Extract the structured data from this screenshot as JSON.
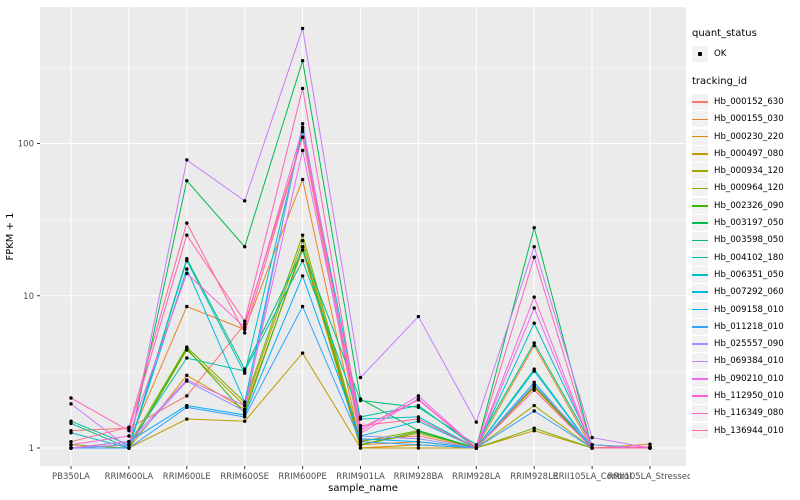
{
  "chart_data": {
    "type": "line",
    "title": "",
    "xlabel": "sample_name",
    "ylabel": "FPKM + 1",
    "y_scale": "log10",
    "y_ticks": [
      1,
      10,
      100
    ],
    "grid": {
      "major_y": [
        1,
        10,
        100
      ],
      "minor_y": [
        3.1623,
        31.623,
        316.23
      ],
      "vertical_major": true
    },
    "legend_position": "right",
    "legend": {
      "quant_status_title": "quant_status",
      "quant_status_items": [
        {
          "label": "OK",
          "symbol": "point"
        }
      ],
      "tracking_title": "tracking_id"
    },
    "colors": {
      "panel_bg": "#ebebeb",
      "grid": "#ffffff",
      "point": "#000000",
      "axis_text": "#4d4d4d",
      "axis_title": "#000000",
      "tick": "#333333",
      "legend_key_bg": "#f2f2f2"
    },
    "categories": [
      "PB350LA",
      "RRIM600LA",
      "RRIM600LE",
      "RRIM600SE",
      "RRIM600PE",
      "RRIM901LA",
      "RRIM928BA",
      "RRIM928LA",
      "RRIM928LE",
      "RRII105LA_Control",
      "RRII105LA_Stressed"
    ],
    "series": [
      {
        "name": "Hb_000152_630",
        "color": "#F8766D",
        "values": [
          1.3,
          1.35,
          2.2,
          6.5,
          110,
          1.12,
          1.2,
          1.0,
          2.6,
          1.0,
          1.0
        ]
      },
      {
        "name": "Hb_000155_030",
        "color": "#E88526",
        "values": [
          1.0,
          1.1,
          8.5,
          6.0,
          58,
          1.05,
          1.1,
          1.0,
          4.7,
          1.0,
          1.06
        ]
      },
      {
        "name": "Hb_000230_220",
        "color": "#D89000",
        "values": [
          1.0,
          1.0,
          3.0,
          1.8,
          20,
          1.0,
          1.05,
          1.0,
          2.5,
          1.0,
          1.0
        ]
      },
      {
        "name": "Hb_000497_080",
        "color": "#C09B00",
        "values": [
          1.0,
          1.0,
          1.55,
          1.5,
          4.2,
          1.0,
          1.0,
          1.0,
          1.3,
          1.0,
          1.0
        ]
      },
      {
        "name": "Hb_000934_120",
        "color": "#A3A500",
        "values": [
          1.05,
          1.0,
          4.4,
          1.9,
          23,
          1.05,
          1.25,
          1.0,
          1.9,
          1.0,
          1.0
        ]
      },
      {
        "name": "Hb_000964_120",
        "color": "#7CAE00",
        "values": [
          1.0,
          1.05,
          4.6,
          2.0,
          25,
          1.1,
          1.3,
          1.0,
          1.35,
          1.0,
          1.0
        ]
      },
      {
        "name": "Hb_002326_090",
        "color": "#39B600",
        "values": [
          1.0,
          1.0,
          4.5,
          1.7,
          21,
          1.05,
          1.28,
          1.0,
          2.55,
          1.0,
          1.0
        ]
      },
      {
        "name": "Hb_003197_050",
        "color": "#00BB4E",
        "values": [
          1.0,
          1.0,
          57,
          21,
          350,
          2.1,
          1.3,
          1.0,
          28,
          1.0,
          1.0
        ]
      },
      {
        "name": "Hb_003598_050",
        "color": "#00BF7D",
        "values": [
          1.45,
          1.0,
          17.5,
          3.3,
          20,
          2.05,
          1.85,
          1.05,
          4.9,
          1.05,
          1.0
        ]
      },
      {
        "name": "Hb_004102_180",
        "color": "#00C1A3",
        "values": [
          1.5,
          1.05,
          3.9,
          3.2,
          17,
          1.6,
          1.9,
          1.0,
          3.3,
          1.0,
          1.0
        ]
      },
      {
        "name": "Hb_006351_050",
        "color": "#00BFC4",
        "values": [
          1.26,
          1.0,
          17,
          3.1,
          120,
          1.55,
          1.6,
          1.0,
          6.6,
          1.05,
          1.0
        ]
      },
      {
        "name": "Hb_007292_060",
        "color": "#00BAE0",
        "values": [
          1.0,
          1.0,
          15,
          2.0,
          128,
          1.2,
          1.5,
          1.0,
          3.2,
          1.0,
          1.0
        ]
      },
      {
        "name": "Hb_009158_010",
        "color": "#00B0F6",
        "values": [
          1.0,
          1.1,
          1.9,
          1.65,
          13.5,
          1.15,
          1.1,
          1.0,
          2.7,
          1.0,
          1.0
        ]
      },
      {
        "name": "Hb_011218_010",
        "color": "#35A2FF",
        "values": [
          1.0,
          1.0,
          1.85,
          1.6,
          8.5,
          1.1,
          1.05,
          1.0,
          1.75,
          1.0,
          1.0
        ]
      },
      {
        "name": "Hb_025557_090",
        "color": "#9590FF",
        "values": [
          1.0,
          1.05,
          2.75,
          1.75,
          135,
          1.2,
          1.15,
          1.0,
          2.6,
          1.05,
          1.0
        ]
      },
      {
        "name": "Hb_069384_010",
        "color": "#C77CFF",
        "values": [
          1.95,
          1.0,
          78,
          42,
          570,
          2.9,
          7.3,
          1.48,
          21,
          1.17,
          1.0
        ]
      },
      {
        "name": "Hb_090210_010",
        "color": "#E76BF3",
        "values": [
          1.0,
          1.1,
          2.8,
          1.9,
          90,
          1.3,
          2.2,
          1.0,
          8.3,
          1.0,
          1.0
        ]
      },
      {
        "name": "Hb_112950_010",
        "color": "#FA62DB",
        "values": [
          1.05,
          1.2,
          14,
          6.2,
          125,
          1.25,
          2.1,
          1.0,
          9.8,
          1.0,
          1.0
        ]
      },
      {
        "name": "Hb_116349_080",
        "color": "#FF62BC",
        "values": [
          2.13,
          1.3,
          25,
          6.8,
          230,
          1.35,
          2.07,
          1.0,
          17.9,
          1.0,
          1.02
        ]
      },
      {
        "name": "Hb_136944_010",
        "color": "#FF6A98",
        "values": [
          1.1,
          1.37,
          30,
          5.7,
          110,
          1.4,
          1.55,
          1.0,
          2.4,
          1.0,
          1.0
        ]
      }
    ]
  }
}
